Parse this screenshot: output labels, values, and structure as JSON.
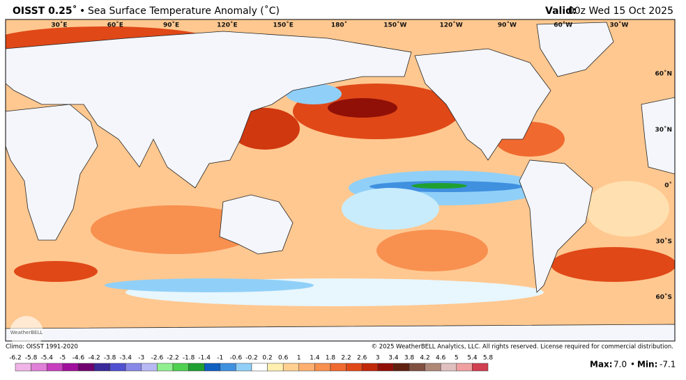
{
  "header": {
    "title_prefix": "OISST 0.25˚",
    "separator": "•",
    "title": "Sea Surface Temperature Anomaly (˚C)",
    "valid_label": "Valid:",
    "valid_time": "00z Wed 15 Oct 2025"
  },
  "map": {
    "lon_labels": [
      "30˚E",
      "60˚E",
      "90˚E",
      "120˚E",
      "150˚E",
      "180˚",
      "150˚W",
      "120˚W",
      "90˚W",
      "60˚W",
      "30˚W"
    ],
    "lat_labels": [
      "60˚N",
      "30˚N",
      "0˚",
      "30˚S",
      "60˚S"
    ],
    "logo": "WeatherBELL"
  },
  "footer": {
    "climo": "Climo: OISST 1991-2020",
    "copyright": "© 2025 WeatherBELL Analytics, LLC. All rights reserved. License required for commercial distribution."
  },
  "colorbar": {
    "ticks": [
      -6.2,
      -5.8,
      -5.4,
      -5,
      -4.6,
      -4.2,
      -3.8,
      -3.4,
      -3,
      -2.6,
      -2.2,
      -1.8,
      -1.4,
      -1,
      -0.6,
      -0.2,
      0.2,
      0.6,
      1,
      1.4,
      1.8,
      2.2,
      2.6,
      3,
      3.4,
      3.8,
      4.2,
      4.6,
      5,
      5.4,
      5.8
    ],
    "colors": [
      "#f0b4e6",
      "#e080d8",
      "#c840c0",
      "#a0109c",
      "#700070",
      "#3a2a9a",
      "#5050d0",
      "#8888e8",
      "#b8b8f4",
      "#90f090",
      "#50d050",
      "#20a030",
      "#1060c0",
      "#4090e0",
      "#90d0f8",
      "#ffffff",
      "#fff0b0",
      "#ffd090",
      "#ffb070",
      "#f89050",
      "#f06a30",
      "#e04818",
      "#c02808",
      "#901008",
      "#602010",
      "#805040",
      "#b08878",
      "#e0c0c0",
      "#f0a0a0",
      "#d04050"
    ]
  },
  "stats": {
    "max_label": "Max:",
    "max": {
      "value": 7,
      "label": "7.0"
    },
    "separator": "•",
    "min_label": "Min:",
    "min": -7.1
  }
}
